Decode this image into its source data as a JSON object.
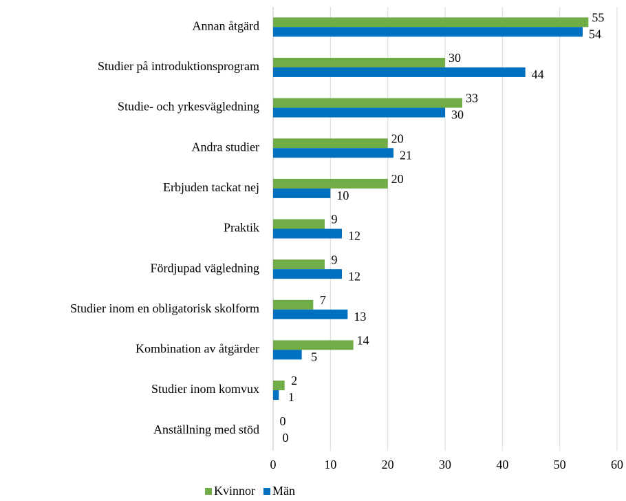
{
  "chart_data": {
    "type": "bar",
    "orientation": "horizontal",
    "categories": [
      "Annan åtgärd",
      "Studier på introduktionsprogram",
      "Studie- och yrkesvägledning",
      "Andra studier",
      "Erbjuden tackat nej",
      "Praktik",
      "Fördjupad vägledning",
      "Studier inom en obligatorisk skolform",
      "Kombination av åtgärder",
      "Studier inom komvux",
      "Anställning med stöd"
    ],
    "series": [
      {
        "name": "Kvinnor",
        "color": "#70ad47",
        "values": [
          55,
          30,
          33,
          20,
          20,
          9,
          9,
          7,
          14,
          2,
          0
        ]
      },
      {
        "name": "Män",
        "color": "#0070c0",
        "values": [
          54,
          44,
          30,
          21,
          10,
          12,
          12,
          13,
          5,
          1,
          0
        ]
      }
    ],
    "xlim": [
      0,
      60
    ],
    "xticks": [
      0,
      10,
      20,
      30,
      40,
      50,
      60
    ],
    "grid": true,
    "legend": "bottom"
  }
}
